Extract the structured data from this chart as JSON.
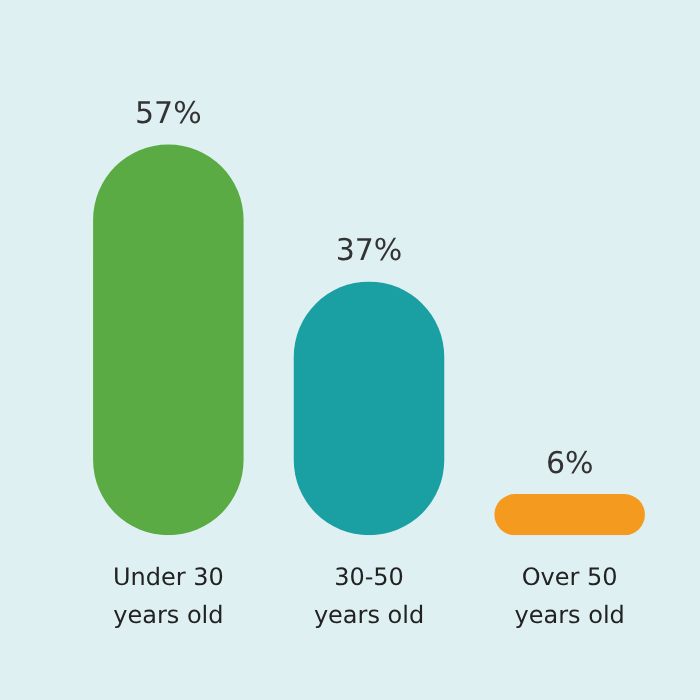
{
  "chart_data": {
    "type": "bar",
    "categories": [
      "Under 30 years old",
      "30-50 years old",
      "Over 50 years old"
    ],
    "values": [
      57,
      37,
      6
    ],
    "colors": [
      "#5aab44",
      "#1a9fa2",
      "#f39a1f"
    ],
    "data_labels": true,
    "value_labels": [
      "57%",
      "37%",
      "6%"
    ],
    "tick_labels": "x",
    "grid": false,
    "legend": false
  }
}
